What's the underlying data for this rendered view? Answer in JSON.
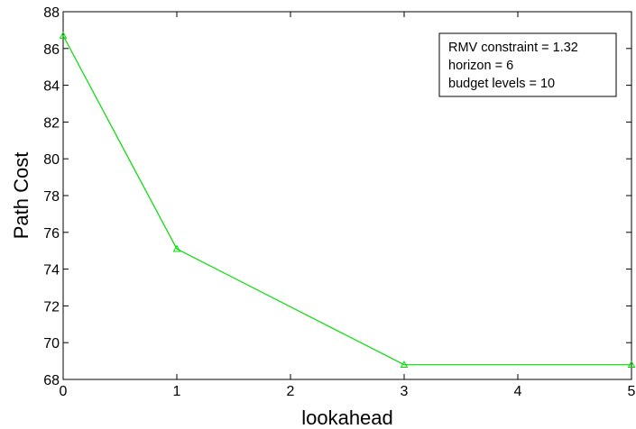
{
  "chart_data": {
    "type": "line",
    "xlabel": "lookahead",
    "ylabel": "Path Cost",
    "xlim": [
      0,
      5
    ],
    "ylim": [
      68,
      88
    ],
    "xticks": [
      0,
      1,
      2,
      3,
      4,
      5
    ],
    "yticks": [
      68,
      70,
      72,
      74,
      76,
      78,
      80,
      82,
      84,
      86,
      88
    ],
    "grid": false,
    "series": [
      {
        "color": "#00dd00",
        "marker": "triangle",
        "x": [
          0,
          1,
          3,
          5
        ],
        "y": [
          86.7,
          75.1,
          68.8,
          68.8
        ]
      }
    ],
    "annotation_box": {
      "placement": "top-right",
      "lines": [
        "RMV constraint = 1.32",
        "horizon = 6",
        "budget levels = 10"
      ]
    }
  }
}
